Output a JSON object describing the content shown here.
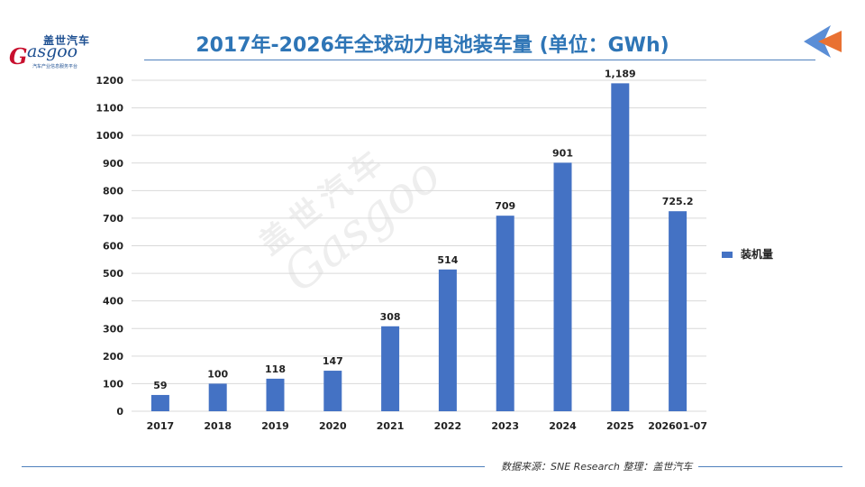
{
  "header": {
    "title": "2017年-2026年全球动力电池装车量 (单位：GWh)",
    "logo_cn": "盖世汽车",
    "logo_en": "asgoo",
    "logo_mark": "G",
    "logo_sub": "汽车产业信息服务平台"
  },
  "footer": {
    "source": "数据来源：SNE Research 整理：盖世汽车"
  },
  "watermark": {
    "cn": "盖世汽车",
    "en": "Gasgoo"
  },
  "colors": {
    "bar": "#4472c4",
    "grid": "#d9d9d9",
    "title": "#2e75b6",
    "accent_orange": "#e97132",
    "accent_blue": "#5b8ed6"
  },
  "chart_data": {
    "type": "bar",
    "title": "2017年-2026年全球动力电池装车量 (单位：GWh)",
    "xlabel": "",
    "ylabel": "",
    "categories": [
      "2017",
      "2018",
      "2019",
      "2020",
      "2021",
      "2022",
      "2023",
      "2024",
      "2025",
      "202601-07"
    ],
    "series": [
      {
        "name": "装机量",
        "values": [
          59,
          100,
          118,
          147,
          308,
          514,
          709,
          901,
          1189,
          725.2
        ],
        "labels": [
          "59",
          "100",
          "118",
          "147",
          "308",
          "514",
          "709",
          "901",
          "1,189",
          "725.2"
        ]
      }
    ],
    "ylim": [
      0,
      1200
    ],
    "yticks": [
      0,
      100,
      200,
      300,
      400,
      500,
      600,
      700,
      800,
      900,
      1000,
      1100,
      1200
    ],
    "grid": true,
    "legend": "right"
  }
}
